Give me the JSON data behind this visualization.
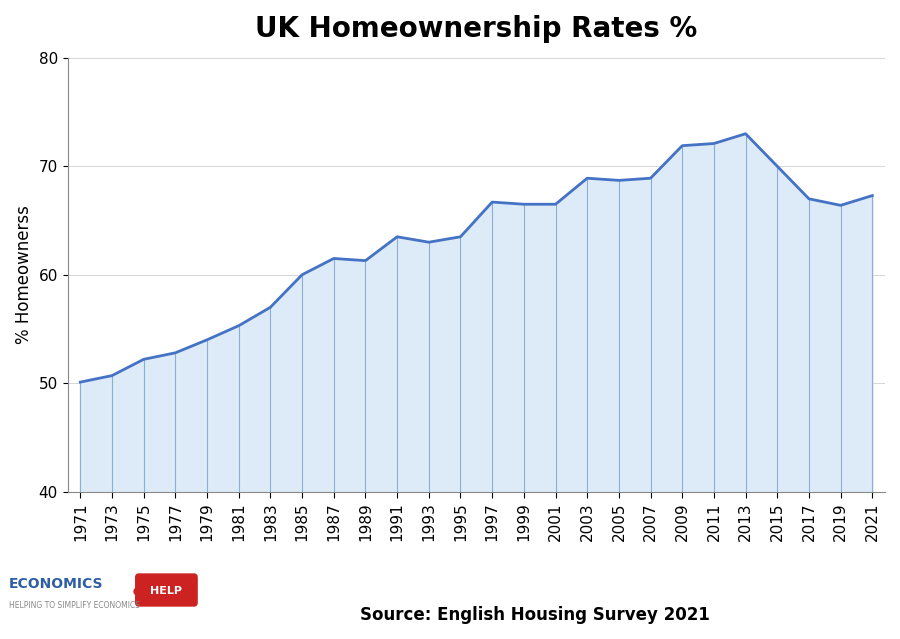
{
  "title": "UK Homeownership Rates %",
  "ylabel": "% Homeownerss",
  "source": "Source: English Housing Survey 2021",
  "ylim": [
    40,
    80
  ],
  "yticks": [
    40,
    50,
    60,
    70,
    80
  ],
  "years": [
    1971,
    1973,
    1975,
    1977,
    1979,
    1981,
    1983,
    1985,
    1987,
    1989,
    1991,
    1993,
    1995,
    1997,
    1999,
    2001,
    2003,
    2005,
    2007,
    2009,
    2011,
    2013,
    2015,
    2017,
    2019,
    2021
  ],
  "values": [
    50.1,
    50.7,
    52.2,
    52.8,
    54.0,
    55.3,
    57.0,
    60.0,
    61.5,
    61.3,
    63.5,
    63.0,
    63.5,
    66.7,
    66.5,
    66.5,
    68.9,
    68.7,
    68.9,
    71.9,
    72.1,
    73.0,
    70.0,
    67.0,
    66.4,
    67.3
  ],
  "line_color": "#4472C4",
  "fill_color": "#DDEAF7",
  "vline_color": "#8AAFD4",
  "fill_alpha": 1.0,
  "background_color": "#ffffff",
  "title_fontsize": 20,
  "label_fontsize": 12,
  "tick_fontsize": 11,
  "source_fontsize": 12
}
